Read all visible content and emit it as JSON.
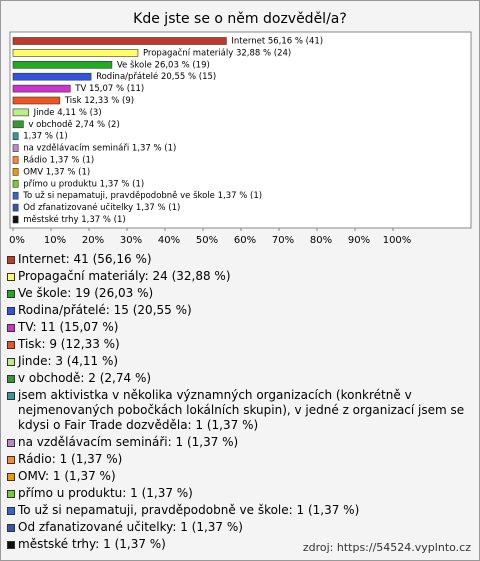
{
  "chart_data": {
    "type": "bar",
    "orientation": "horizontal",
    "title": "Kde jste se o něm dozvěděl/a?",
    "categories": [
      "Internet",
      "Propagační materiály",
      "Ve škole",
      "Rodina/přátelé",
      "TV",
      "Tisk",
      "Jinde",
      "v obchodě",
      "jsem aktivistka v několika významných organizacích (konkrétně v nejmenovaných pobočkách lokálních skupin), v jedné z organizací jsem se kdysi o Fair Trade dozvěděla",
      "na vzdělávacím semináři",
      "Rádio",
      "OMV",
      "přímo u produktu",
      "To už si nepamatuji, pravděpodobně ve škole",
      "Od zfanatizované učitelky",
      "městské trhy"
    ],
    "values": [
      56.16,
      32.88,
      26.03,
      20.55,
      15.07,
      12.33,
      4.11,
      2.74,
      1.37,
      1.37,
      1.37,
      1.37,
      1.37,
      1.37,
      1.37,
      1.37
    ],
    "value_labels": [
      "Internet 56,16 % (41)",
      "Propagační materiály 32,88 % (24)",
      "Ve škole 26,03 % (19)",
      "Rodina/přátelé 20,55 % (15)",
      "TV 15,07 % (11)",
      "Tisk 12,33 % (9)",
      "Jinde 4,11 % (3)",
      "v obchodě 2,74 % (2)",
      "1,37 % (1)",
      "na vzdělávacím semináři 1,37 % (1)",
      "Rádio 1,37 % (1)",
      "OMV 1,37 % (1)",
      "přímo u produktu 1,37 % (1)",
      "To už si nepamatuji, pravděpodobně ve škole 1,37 % (1)",
      "Od zfanatizované učitelky 1,37 % (1)",
      "městské trhy 1,37 % (1)"
    ],
    "legend_labels": [
      "Internet: 41 (56,16 %)",
      "Propagační materiály: 24 (32,88 %)",
      "Ve škole: 19 (26,03 %)",
      "Rodina/přátelé: 15 (20,55 %)",
      "TV: 11 (15,07 %)",
      "Tisk: 9 (12,33 %)",
      "Jinde: 3 (4,11 %)",
      "v obchodě: 2 (2,74 %)",
      "jsem aktivistka v několika významných organizacích (konkrétně v nejmenovaných pobočkách lokálních skupin), v jedné z organizací jsem se kdysi o Fair Trade dozvěděla: 1 (1,37 %)",
      "na vzdělávacím semináři: 1 (1,37 %)",
      "Rádio: 1 (1,37 %)",
      "OMV: 1 (1,37 %)",
      "přímo u produktu: 1 (1,37 %)",
      "To už si nepamatuji, pravděpodobně ve škole: 1 (1,37 %)",
      "Od zfanatizované učitelky: 1 (1,37 %)",
      "městské trhy: 1 (1,37 %)"
    ],
    "colors": [
      "#c0392b",
      "#ffff66",
      "#22aa22",
      "#3355dd",
      "#cc33cc",
      "#ee5522",
      "#bbee88",
      "#339933",
      "#339999",
      "#bb88cc",
      "#ff8833",
      "#ee9900",
      "#77cc33",
      "#3366cc",
      "#3355aa",
      "#111111"
    ],
    "xlim": [
      0,
      100
    ],
    "xticks": [
      {
        "value": 0,
        "label": "0%"
      },
      {
        "value": 10,
        "label": "10%"
      },
      {
        "value": 20,
        "label": "20%"
      },
      {
        "value": 30,
        "label": "30%"
      },
      {
        "value": 40,
        "label": "40%"
      },
      {
        "value": 50,
        "label": "50%"
      },
      {
        "value": 60,
        "label": "60%"
      },
      {
        "value": 70,
        "label": "70%"
      },
      {
        "value": 80,
        "label": "80%"
      },
      {
        "value": 90,
        "label": "90%"
      },
      {
        "value": 100,
        "label": "100%"
      }
    ],
    "source": "zdroj: https://54524.vyplnto.cz"
  }
}
